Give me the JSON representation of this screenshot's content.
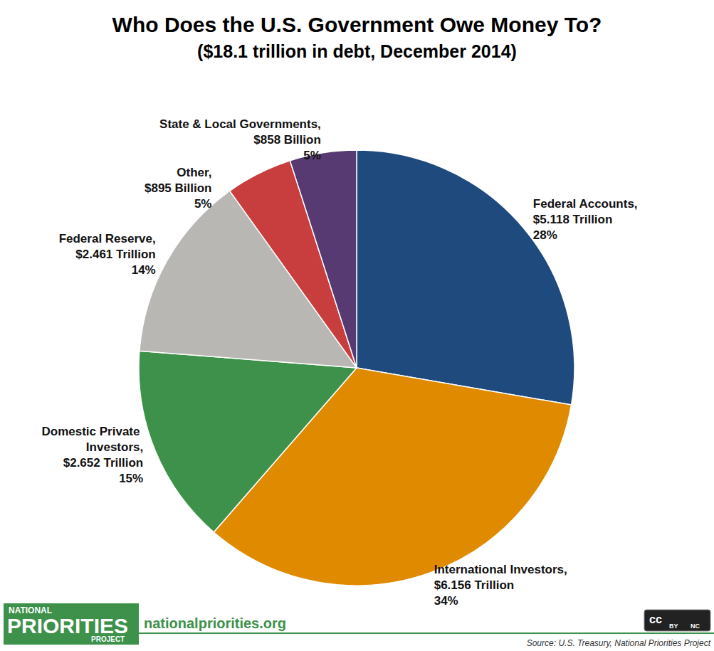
{
  "chart_data": {
    "type": "pie",
    "title": "Who Does the U.S. Government Owe Money To?",
    "subtitle": "($18.1 trillion in debt, December 2014)",
    "categories": [
      "Federal Accounts,",
      "International Investors,",
      "Domestic Private Investors,",
      "Federal Reserve,",
      "Other,",
      "State & Local Governments,"
    ],
    "amounts": [
      "$5.118 Trillion",
      "$6.156 Trillion",
      "$2.652 Trillion",
      "$2.461 Trillion",
      "$895 Billion",
      "$858 Billion"
    ],
    "values": [
      28,
      34,
      15,
      14,
      5,
      5
    ],
    "value_labels": [
      "28%",
      "34%",
      "15%",
      "14%",
      "5%",
      "5%"
    ],
    "colors": [
      "#1f4a7e",
      "#e08a00",
      "#3d914a",
      "#b8b7b3",
      "#c83e3e",
      "#573a72"
    ],
    "data_labels": true
  },
  "footer": {
    "website": "nationalpriorities.org",
    "source": "Source: U.S. Treasury, National Priorities Project",
    "logo": [
      "NATIONAL",
      "PRIORITIES",
      "PROJECT"
    ],
    "license": [
      "cc",
      "BY",
      "NC"
    ]
  }
}
